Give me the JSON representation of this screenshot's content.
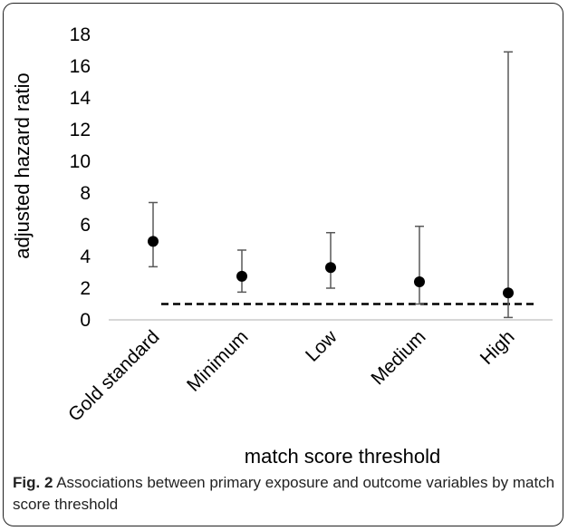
{
  "chart_data": {
    "type": "scatter",
    "categories": [
      "Gold standard",
      "Minimum",
      "Low",
      "Medium",
      "High"
    ],
    "values": [
      4.95,
      2.75,
      3.3,
      2.4,
      1.7
    ],
    "error_low": [
      3.35,
      1.75,
      2.0,
      1.0,
      0.15
    ],
    "error_high": [
      7.4,
      4.4,
      5.5,
      5.9,
      16.9
    ],
    "reference_line": 1,
    "ylim": [
      0,
      18
    ],
    "yticks": [
      "0",
      "2",
      "4",
      "6",
      "8",
      "10",
      "12",
      "14",
      "16",
      "18"
    ],
    "xlabel": "match score threshold",
    "ylabel": "adjusted hazard ratio",
    "grid": false
  },
  "caption": {
    "label": "Fig. 2",
    "text": " Associations between primary exposure and outcome variables by match score threshold"
  }
}
